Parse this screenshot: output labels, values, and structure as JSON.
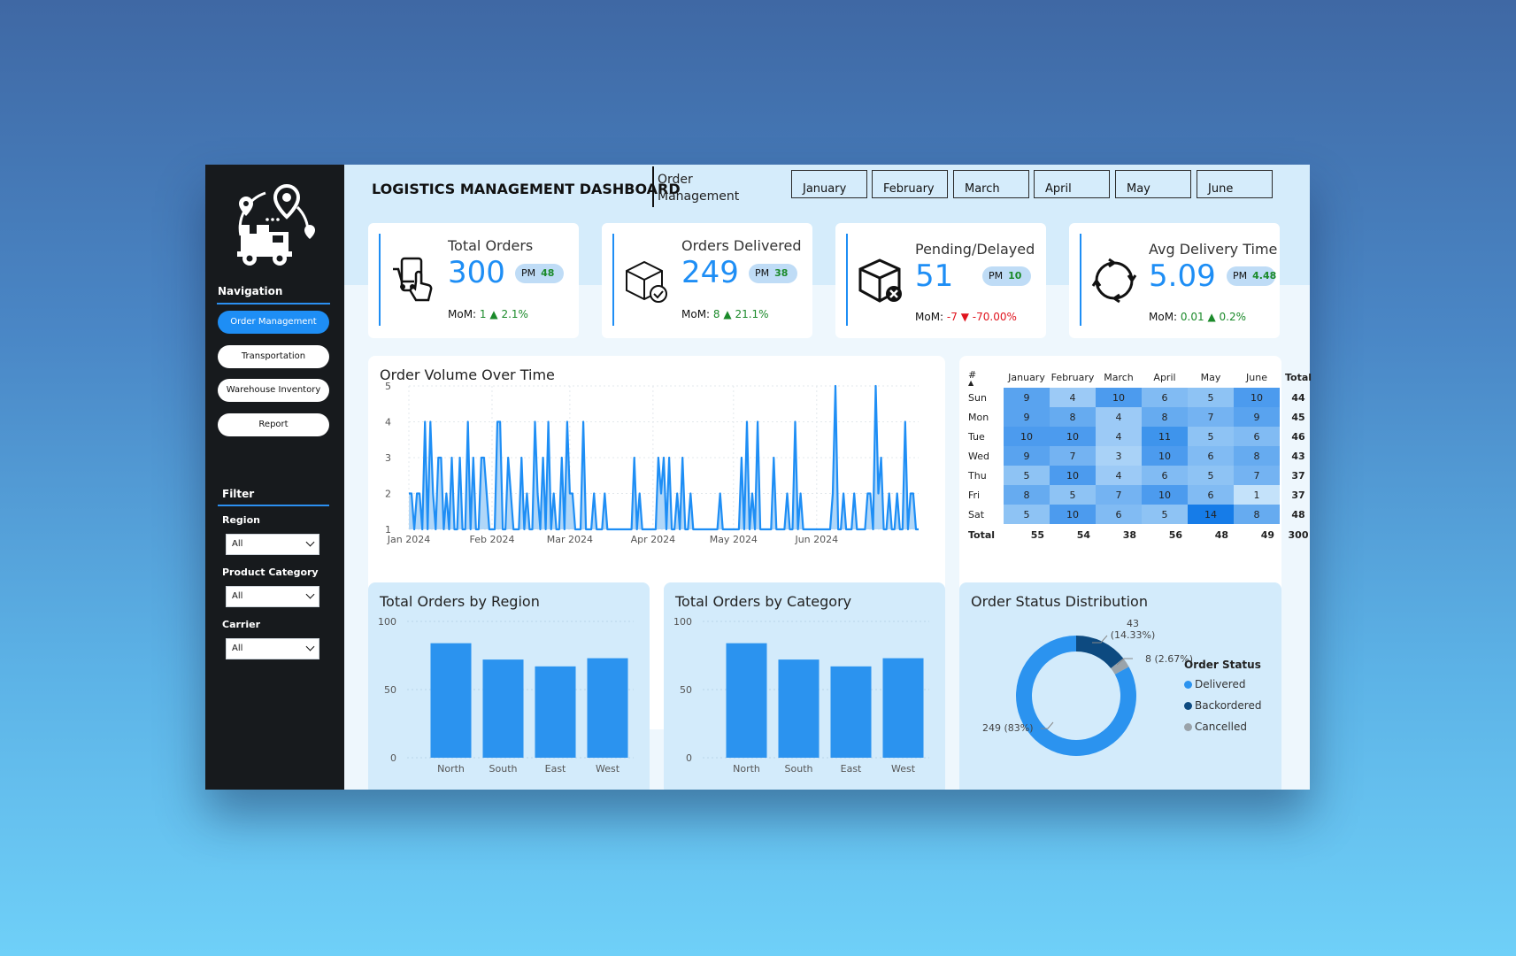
{
  "header": {
    "title": "LOGISTICS MANAGEMENT DASHBOARD",
    "subtitle": "Order Management",
    "months": [
      "January",
      "February",
      "March",
      "April",
      "May",
      "June"
    ]
  },
  "sidebar": {
    "nav_title": "Navigation",
    "nav_items": [
      {
        "label": "Order Management",
        "active": true
      },
      {
        "label": "Transportation",
        "active": false
      },
      {
        "label": "Warehouse Inventory",
        "active": false
      },
      {
        "label": "Report",
        "active": false
      }
    ],
    "filter_title": "Filter",
    "filters": [
      {
        "label": "Region",
        "value": "All"
      },
      {
        "label": "Product Category",
        "value": "All"
      },
      {
        "label": "Carrier",
        "value": "All"
      }
    ]
  },
  "kpis": [
    {
      "label": "Total Orders",
      "value": "300",
      "pm_label": "PM",
      "pm_value": "48",
      "mom_label": "MoM:",
      "mom_abs": "1",
      "mom_pct": "2.1%",
      "trend": "up",
      "icon": "phone-order-icon"
    },
    {
      "label": "Orders Delivered",
      "value": "249",
      "pm_label": "PM",
      "pm_value": "38",
      "mom_label": "MoM:",
      "mom_abs": "8",
      "mom_pct": "21.1%",
      "trend": "up",
      "icon": "box-check-icon"
    },
    {
      "label": "Pending/Delayed",
      "value": "51",
      "pm_label": "PM",
      "pm_value": "10",
      "mom_label": "MoM:",
      "mom_abs": "-7",
      "mom_pct": "-70.00%",
      "trend": "down",
      "icon": "box-cancel-icon"
    },
    {
      "label": "Avg Delivery Time",
      "value": "5.09",
      "pm_label": "PM",
      "pm_value": "4.48",
      "mom_label": "MoM:",
      "mom_abs": "0.01",
      "mom_pct": "0.2%",
      "trend": "up",
      "icon": "cycle-icon"
    }
  ],
  "colors": {
    "accent": "#1e8ef5",
    "up": "#1b8a2a",
    "down": "#e0141e",
    "delivered": "#2b93ef",
    "backordered": "#0d4a80",
    "cancelled": "#9aa3aa"
  },
  "volume_title": "Order Volume Over Time",
  "heatmap_title": "#",
  "region_title": "Total Orders by Region",
  "category_title": "Total Orders by Category",
  "status_title": "Order Status Distribution",
  "chart_data": [
    {
      "type": "area",
      "title": "Order Volume Over Time",
      "x_start": "2024-01-01",
      "x_ticks": [
        "Jan 2024",
        "Feb 2024",
        "Mar 2024",
        "Apr 2024",
        "May 2024",
        "Jun 2024"
      ],
      "y_ticks": [
        1,
        2,
        3,
        4,
        5
      ],
      "ylim": [
        1,
        5
      ],
      "values": [
        2,
        2,
        1,
        2,
        2,
        1,
        4,
        1,
        4,
        2,
        1,
        3,
        3,
        1,
        2,
        1,
        3,
        1,
        1,
        3,
        1,
        1,
        4,
        1,
        3,
        1,
        1,
        3,
        3,
        2,
        1,
        1,
        1,
        4,
        4,
        1,
        1,
        3,
        2,
        1,
        1,
        1,
        3,
        1,
        2,
        1,
        1,
        4,
        2,
        1,
        3,
        1,
        4,
        1,
        2,
        1,
        1,
        3,
        1,
        4,
        2,
        2,
        1,
        1,
        1,
        4,
        1,
        1,
        1,
        2,
        1,
        1,
        1,
        2,
        1,
        1,
        1,
        1,
        1,
        1,
        1,
        1,
        1,
        1,
        3,
        1,
        2,
        1,
        1,
        1,
        1,
        1,
        1,
        3,
        2,
        3,
        1,
        3,
        1,
        1,
        2,
        1,
        3,
        1,
        1,
        2,
        1,
        1,
        1,
        1,
        1,
        1,
        1,
        1,
        1,
        1,
        2,
        1,
        1,
        1,
        1,
        1,
        1,
        1,
        3,
        1,
        4,
        1,
        2,
        1,
        4,
        1,
        1,
        1,
        1,
        1,
        3,
        1,
        1,
        1,
        1,
        2,
        1,
        1,
        4,
        1,
        2,
        1,
        1,
        1,
        1,
        1,
        1,
        1,
        1,
        1,
        1,
        1,
        2,
        5,
        1,
        1,
        2,
        1,
        1,
        1,
        2,
        1,
        1,
        1,
        1,
        2,
        2,
        1,
        5,
        2,
        3,
        1,
        1,
        2,
        1,
        1,
        2,
        1,
        1,
        4,
        1,
        2,
        2,
        1,
        1
      ]
    },
    {
      "type": "heatmap",
      "columns": [
        "January",
        "February",
        "March",
        "April",
        "May",
        "June",
        "Total"
      ],
      "rows": [
        "Sun",
        "Mon",
        "Tue",
        "Wed",
        "Thu",
        "Fri",
        "Sat"
      ],
      "values": [
        [
          9,
          4,
          10,
          6,
          5,
          10
        ],
        [
          9,
          8,
          4,
          8,
          7,
          9
        ],
        [
          10,
          10,
          4,
          11,
          5,
          6
        ],
        [
          9,
          7,
          3,
          10,
          6,
          8
        ],
        [
          5,
          10,
          4,
          6,
          5,
          7
        ],
        [
          8,
          5,
          7,
          10,
          6,
          1
        ],
        [
          5,
          10,
          6,
          5,
          14,
          8
        ]
      ],
      "row_totals": [
        44,
        45,
        46,
        43,
        37,
        37,
        48
      ],
      "total_label": "Total",
      "col_totals": [
        55,
        54,
        38,
        56,
        48,
        49
      ],
      "grand_total": 300
    },
    {
      "type": "bar",
      "title": "Total Orders by Region",
      "categories": [
        "North",
        "South",
        "East",
        "West"
      ],
      "values": [
        84,
        72,
        67,
        73
      ],
      "ylim": [
        0,
        100
      ],
      "y_ticks": [
        0,
        50,
        100
      ]
    },
    {
      "type": "bar",
      "title": "Total Orders by Category",
      "categories": [
        "North",
        "South",
        "East",
        "West"
      ],
      "values": [
        84,
        72,
        67,
        73
      ],
      "ylim": [
        0,
        100
      ],
      "y_ticks": [
        0,
        50,
        100
      ]
    },
    {
      "type": "pie",
      "title": "Order Status Distribution",
      "legend_title": "Order Status",
      "labels": [
        "Delivered",
        "Backordered",
        "Cancelled"
      ],
      "values": [
        249,
        43,
        8
      ],
      "data_labels": [
        "249 (83%)",
        "43 (14.33%)",
        "8 (2.67%)"
      ],
      "legend": "right"
    }
  ]
}
